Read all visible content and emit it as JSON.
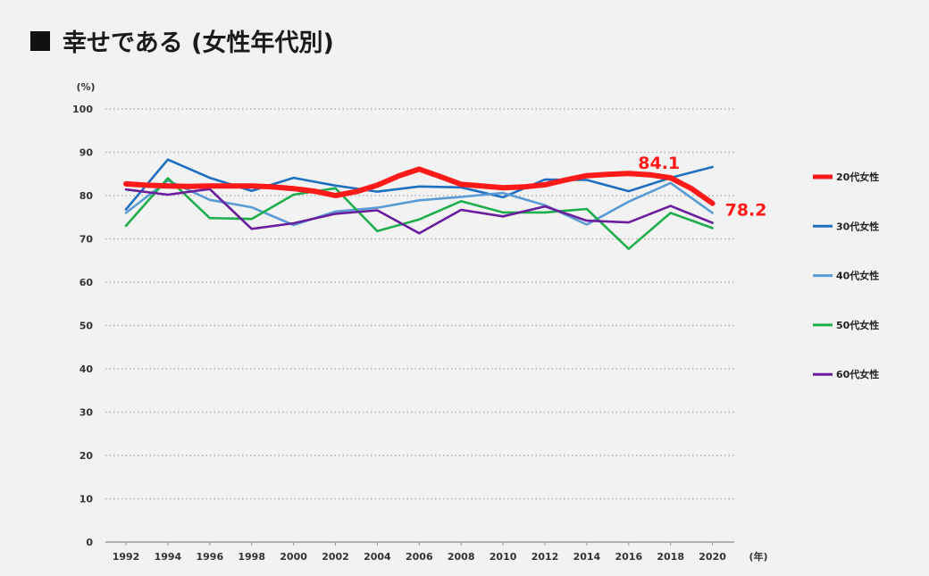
{
  "title": {
    "text": "幸せである (女性年代別)"
  },
  "chart_data": {
    "type": "line",
    "title": "幸せである (女性年代別)",
    "y_unit": "(%)",
    "x_unit": "(年)",
    "ylim": [
      0,
      100
    ],
    "yticks": [
      0,
      10,
      20,
      30,
      40,
      50,
      60,
      70,
      80,
      90,
      100
    ],
    "grid": "horizontal-dotted",
    "legend_position": "right",
    "x": [
      1992,
      1993,
      1994,
      1995,
      1996,
      1997,
      1998,
      1999,
      2000,
      2001,
      2002,
      2003,
      2004,
      2005,
      2006,
      2007,
      2008,
      2009,
      2010,
      2011,
      2012,
      2013,
      2014,
      2015,
      2016,
      2017,
      2018,
      2019,
      2020
    ],
    "x_labels": [
      "1992",
      "1994",
      "1996",
      "1998",
      "2000",
      "2002",
      "2004",
      "2006",
      "2008",
      "2010",
      "2012",
      "2014",
      "2016",
      "2018",
      "2020"
    ],
    "series": [
      {
        "name": "20代女性",
        "color": "#ff1a1a",
        "width": 6,
        "values": [
          82.7,
          82.4,
          82.2,
          82.1,
          82.2,
          82.2,
          82.2,
          82.0,
          81.6,
          81.0,
          80.0,
          80.9,
          82.4,
          84.5,
          86.1,
          84.4,
          82.6,
          82.2,
          81.8,
          82.0,
          82.5,
          83.6,
          84.6,
          84.9,
          85.1,
          84.8,
          84.1,
          81.6,
          78.2
        ]
      },
      {
        "name": "30代女性",
        "color": "#1f6fc1",
        "width": 2.6,
        "values": [
          76.8,
          null,
          88.3,
          null,
          84.1,
          null,
          81.1,
          null,
          84.1,
          null,
          82.3,
          null,
          80.9,
          null,
          82.1,
          null,
          81.9,
          null,
          79.6,
          null,
          83.7,
          null,
          83.6,
          null,
          81.0,
          null,
          84.1,
          null,
          86.6
        ]
      },
      {
        "name": "40代女性",
        "color": "#5b9bd5",
        "width": 2.6,
        "values": [
          76.0,
          null,
          83.5,
          null,
          79.0,
          null,
          77.3,
          null,
          73.2,
          null,
          76.3,
          null,
          77.2,
          null,
          78.9,
          null,
          79.7,
          null,
          80.6,
          null,
          77.8,
          null,
          73.3,
          null,
          78.6,
          null,
          82.9,
          null,
          76.0
        ]
      },
      {
        "name": "50代女性",
        "color": "#1fae4c",
        "width": 2.6,
        "values": [
          73.0,
          null,
          84.0,
          null,
          74.8,
          null,
          74.6,
          null,
          80.2,
          null,
          81.7,
          null,
          71.8,
          null,
          74.5,
          null,
          78.7,
          null,
          76.1,
          null,
          76.1,
          null,
          76.9,
          null,
          67.7,
          null,
          76.0,
          null,
          72.5
        ]
      },
      {
        "name": "60代女性",
        "color": "#6a1e9e",
        "width": 2.6,
        "values": [
          81.4,
          null,
          80.2,
          null,
          81.5,
          null,
          72.3,
          null,
          73.6,
          null,
          75.8,
          null,
          76.6,
          null,
          71.3,
          null,
          76.7,
          null,
          75.2,
          null,
          77.5,
          null,
          74.2,
          null,
          73.8,
          null,
          77.6,
          null,
          73.7
        ]
      }
    ],
    "annotations": [
      {
        "text": "84.1",
        "series": "20代女性",
        "x": 2018,
        "y": 84.1,
        "color": "#ff1a1a"
      },
      {
        "text": "78.2",
        "series": "20代女性",
        "x": 2020,
        "y": 78.2,
        "color": "#ff1a1a"
      }
    ]
  }
}
